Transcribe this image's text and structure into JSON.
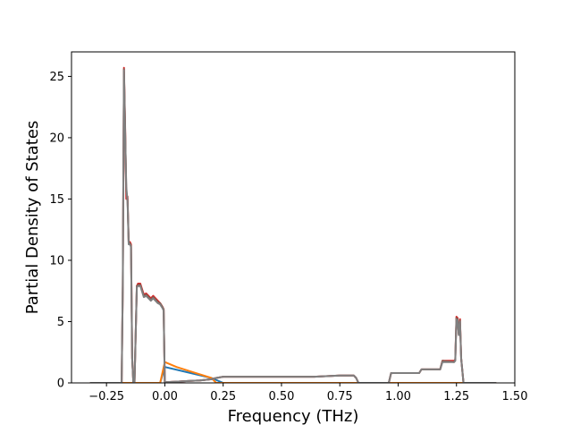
{
  "chart_data": {
    "type": "line",
    "title": "",
    "xlabel": "Frequency (THz)",
    "ylabel": "Partial Density of States",
    "xlim": [
      -0.4,
      1.5
    ],
    "ylim": [
      0,
      27
    ],
    "grid": false,
    "legend": "none",
    "x_ticks": [
      {
        "value": -0.25,
        "label": "−0.25"
      },
      {
        "value": 0.0,
        "label": "0.00"
      },
      {
        "value": 0.25,
        "label": "0.25"
      },
      {
        "value": 0.5,
        "label": "0.50"
      },
      {
        "value": 0.75,
        "label": "0.75"
      },
      {
        "value": 1.0,
        "label": "1.00"
      },
      {
        "value": 1.25,
        "label": "1.25"
      },
      {
        "value": 1.5,
        "label": "1.50"
      }
    ],
    "y_ticks": [
      {
        "value": 0,
        "label": "0"
      },
      {
        "value": 5,
        "label": "5"
      },
      {
        "value": 10,
        "label": "10"
      },
      {
        "value": 15,
        "label": "15"
      },
      {
        "value": 20,
        "label": "20"
      },
      {
        "value": 25,
        "label": "25"
      }
    ],
    "series": [
      {
        "color": "#1f77b4",
        "x": [
          -0.32,
          -0.17,
          -0.02,
          0.0,
          0.2,
          0.25,
          0.82,
          1.42
        ],
        "y": [
          0,
          0,
          0,
          1.3,
          0.4,
          0,
          0,
          0
        ]
      },
      {
        "color": "#ff7f0e",
        "x": [
          -0.32,
          -0.02,
          0.0,
          0.05,
          0.1,
          0.2,
          0.22,
          1.42
        ],
        "y": [
          0,
          0,
          1.7,
          1.3,
          1.0,
          0.4,
          0,
          0
        ]
      },
      {
        "color": "#d62728",
        "x": [
          -0.32,
          -0.185,
          -0.18,
          -0.175,
          -0.17,
          -0.165,
          -0.16,
          -0.155,
          -0.15,
          -0.145,
          -0.14,
          -0.135,
          -0.13,
          -0.12,
          -0.115,
          -0.105,
          -0.09,
          -0.08,
          -0.06,
          -0.05,
          -0.03,
          -0.02,
          -0.01,
          -0.005,
          0.0,
          0.05,
          0.1,
          0.15,
          0.2,
          0.22,
          0.25,
          0.4,
          0.5,
          0.64,
          0.75,
          0.81,
          0.82,
          0.83,
          0.96,
          0.97,
          1.0,
          1.05,
          1.09,
          1.1,
          1.14,
          1.18,
          1.19,
          1.24,
          1.245,
          1.25,
          1.255,
          1.26,
          1.265,
          1.27,
          1.28,
          1.42
        ],
        "y": [
          0,
          0,
          8.0,
          25.7,
          21.0,
          15.0,
          15.2,
          11.4,
          11.5,
          11.3,
          2.0,
          0,
          0,
          7.9,
          8.1,
          8.1,
          7.2,
          7.3,
          6.9,
          7.1,
          6.7,
          6.5,
          6.2,
          6.0,
          0.05,
          0.1,
          0.15,
          0.2,
          0.3,
          0.4,
          0.5,
          0.5,
          0.5,
          0.5,
          0.6,
          0.6,
          0.4,
          0,
          0,
          0.8,
          0.8,
          0.8,
          0.8,
          1.1,
          1.1,
          1.1,
          1.8,
          1.8,
          1.9,
          5.4,
          5.3,
          4.0,
          5.2,
          2.0,
          0,
          0
        ]
      },
      {
        "color": "#8c564b",
        "x": [
          -0.32,
          -0.185,
          -0.18,
          -0.175,
          -0.17,
          -0.165,
          -0.16,
          -0.155,
          -0.15,
          -0.145,
          -0.14,
          -0.135,
          -0.13,
          -0.12,
          -0.115,
          -0.105,
          -0.09,
          -0.08,
          -0.06,
          -0.05,
          -0.03,
          -0.02,
          -0.01,
          -0.005,
          0.0,
          0.05,
          0.1,
          0.15,
          0.2,
          0.22,
          0.25,
          0.4,
          0.5,
          0.64,
          0.75,
          0.81,
          0.82,
          0.83,
          0.96,
          0.97,
          1.0,
          1.05,
          1.09,
          1.1,
          1.14,
          1.18,
          1.19,
          1.24,
          1.245,
          1.25,
          1.255,
          1.26,
          1.265,
          1.27,
          1.28,
          1.42
        ],
        "y": [
          0,
          0,
          8.0,
          25.6,
          20.8,
          15.6,
          15.0,
          11.4,
          11.4,
          11.2,
          2.0,
          0,
          0,
          7.9,
          8.0,
          8.0,
          7.1,
          7.2,
          6.8,
          7.0,
          6.6,
          6.5,
          6.2,
          6.0,
          0.05,
          0.1,
          0.15,
          0.2,
          0.3,
          0.4,
          0.5,
          0.5,
          0.5,
          0.5,
          0.6,
          0.6,
          0.4,
          0,
          0,
          0.8,
          0.8,
          0.8,
          0.8,
          1.1,
          1.1,
          1.1,
          1.8,
          1.7,
          1.9,
          5.3,
          5.2,
          4.0,
          5.1,
          2.0,
          0,
          0
        ]
      },
      {
        "color": "#7f7f7f",
        "x": [
          -0.32,
          -0.185,
          -0.18,
          -0.175,
          -0.17,
          -0.165,
          -0.16,
          -0.155,
          -0.15,
          -0.145,
          -0.14,
          -0.135,
          -0.13,
          -0.12,
          -0.115,
          -0.105,
          -0.09,
          -0.08,
          -0.06,
          -0.05,
          -0.03,
          -0.02,
          -0.01,
          -0.005,
          0.0,
          0.05,
          0.1,
          0.15,
          0.2,
          0.22,
          0.25,
          0.4,
          0.5,
          0.64,
          0.75,
          0.81,
          0.82,
          0.83,
          0.96,
          0.97,
          1.0,
          1.05,
          1.09,
          1.1,
          1.14,
          1.18,
          1.19,
          1.24,
          1.245,
          1.25,
          1.255,
          1.26,
          1.265,
          1.27,
          1.28,
          1.42
        ],
        "y": [
          0,
          0,
          8.0,
          25.5,
          20.5,
          16.0,
          14.8,
          11.3,
          11.3,
          11.1,
          2.0,
          0,
          0,
          7.8,
          7.9,
          7.9,
          7.0,
          7.1,
          6.7,
          6.9,
          6.5,
          6.4,
          6.1,
          5.9,
          0.05,
          0.1,
          0.15,
          0.2,
          0.3,
          0.4,
          0.5,
          0.5,
          0.5,
          0.5,
          0.6,
          0.6,
          0.4,
          0,
          0,
          0.8,
          0.8,
          0.8,
          0.8,
          1.1,
          1.1,
          1.1,
          1.7,
          1.7,
          1.8,
          5.2,
          5.1,
          3.9,
          5.0,
          2.0,
          0,
          0
        ]
      }
    ]
  }
}
